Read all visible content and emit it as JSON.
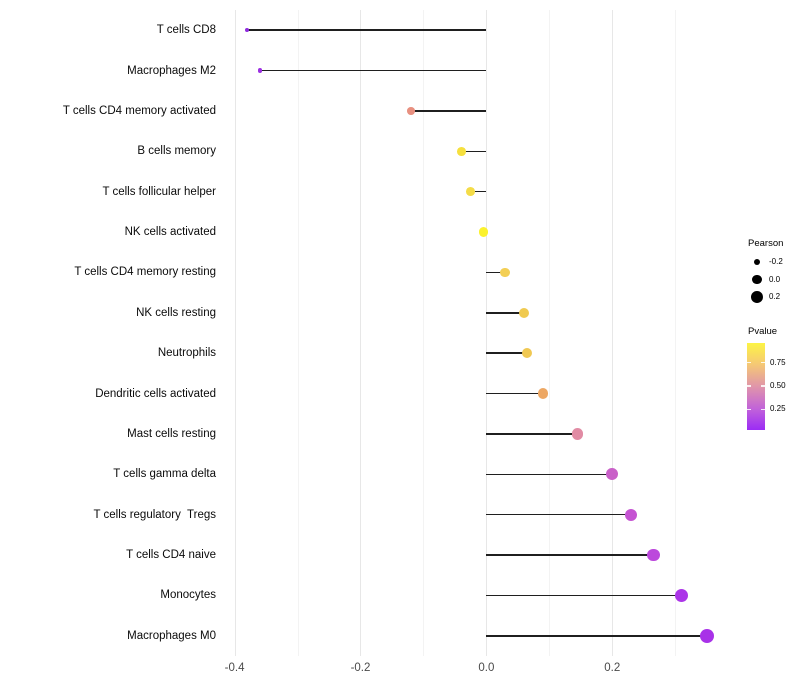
{
  "chart_data": {
    "type": "lollipop",
    "title": "",
    "xlabel": "",
    "ylabel": "",
    "grid": true,
    "background": "#ffffff",
    "stem_color": "#1f1f1f",
    "xlim": [
      -0.42,
      0.387
    ],
    "x_major_ticks": [
      -0.4,
      -0.2,
      0.0,
      0.2
    ],
    "x_minor_ticks": [
      -0.3,
      -0.1,
      0.1,
      0.3
    ],
    "x_tick_labels": [
      "-0.4",
      "-0.2",
      "0.0",
      "0.2"
    ],
    "points": [
      {
        "category": "T cells CD8",
        "pearson": -0.38,
        "pvalue_est": 0.04,
        "color": "#8F2BDE"
      },
      {
        "category": "Macrophages M2",
        "pearson": -0.36,
        "pvalue_est": 0.05,
        "color": "#9C2FE2"
      },
      {
        "category": "T cells CD4 memory activated",
        "pearson": -0.12,
        "pvalue_est": 0.6,
        "color": "#E89080"
      },
      {
        "category": "B cells memory",
        "pearson": -0.04,
        "pvalue_est": 0.87,
        "color": "#F6E03E"
      },
      {
        "category": "T cells follicular helper",
        "pearson": -0.025,
        "pvalue_est": 0.85,
        "color": "#F4DC48"
      },
      {
        "category": "NK cells activated",
        "pearson": -0.005,
        "pvalue_est": 0.96,
        "color": "#FBF22D"
      },
      {
        "category": "T cells CD4 memory resting",
        "pearson": 0.03,
        "pvalue_est": 0.81,
        "color": "#F3CF55"
      },
      {
        "category": "NK cells resting",
        "pearson": 0.06,
        "pvalue_est": 0.78,
        "color": "#F0CA50"
      },
      {
        "category": "Neutrophils",
        "pearson": 0.065,
        "pvalue_est": 0.77,
        "color": "#F0C852"
      },
      {
        "category": "Dendritic cells activated",
        "pearson": 0.09,
        "pvalue_est": 0.67,
        "color": "#EDA763"
      },
      {
        "category": "Mast cells resting",
        "pearson": 0.145,
        "pvalue_est": 0.52,
        "color": "#E18BA4"
      },
      {
        "category": "T cells gamma delta",
        "pearson": 0.2,
        "pvalue_est": 0.31,
        "color": "#C960C8"
      },
      {
        "category": "T cells regulatory  Tregs",
        "pearson": 0.23,
        "pvalue_est": 0.27,
        "color": "#C554D2"
      },
      {
        "category": "T cells CD4 naive",
        "pearson": 0.265,
        "pvalue_est": 0.22,
        "color": "#BC48DC"
      },
      {
        "category": "Monocytes",
        "pearson": 0.31,
        "pvalue_est": 0.13,
        "color": "#AC35E8"
      },
      {
        "category": "Macrophages M0",
        "pearson": 0.35,
        "pvalue_est": 0.12,
        "color": "#A832E8"
      }
    ],
    "legend": {
      "position": "right",
      "pearson": {
        "title": "Pearson",
        "items": [
          {
            "label": "-0.2",
            "value": -0.2
          },
          {
            "label": "0.0",
            "value": 0.0
          },
          {
            "label": "0.2",
            "value": 0.2
          }
        ]
      },
      "pvalue": {
        "title": "Pvalue",
        "tick_labels": [
          "0.75",
          "0.50",
          "0.25"
        ],
        "tick_values": [
          0.75,
          0.5,
          0.25
        ],
        "range_top": 0.96,
        "range_bottom": 0.03,
        "gradient_stops": [
          {
            "color": "#FCF445",
            "pos": "0%"
          },
          {
            "color": "#F6CB72",
            "pos": "23%"
          },
          {
            "color": "#E095AA",
            "pos": "50%"
          },
          {
            "color": "#C162DA",
            "pos": "76%"
          },
          {
            "color": "#9B2CF5",
            "pos": "100%"
          }
        ]
      }
    }
  }
}
